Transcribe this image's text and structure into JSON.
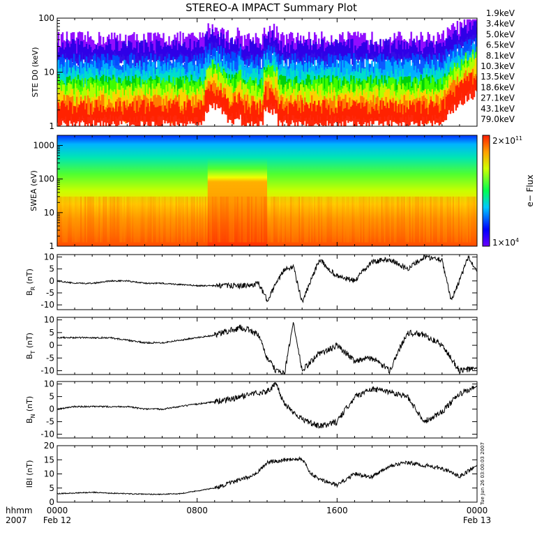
{
  "title": "STEREO-A IMPACT Summary Plot",
  "footer": {
    "hhmm_label": "hhmm",
    "year_label": "2007",
    "time_ticks": [
      "0000",
      "0800",
      "1600",
      "0000"
    ],
    "date_ticks": [
      "Feb 12",
      "",
      "",
      "Feb 13"
    ],
    "timestamp": "Tue Jun 26 03:00:03 2007"
  },
  "colors": {
    "line": "#000000",
    "ste_channels": [
      "#8c00ff",
      "#2a00e6",
      "#0050ff",
      "#00b4ff",
      "#00e0c8",
      "#00d000",
      "#40ff00",
      "#b4ff00",
      "#ffd200",
      "#ff7800",
      "#ff1e00"
    ]
  },
  "chart_data": [
    {
      "type": "line",
      "panel": "ste",
      "ylabel": "STE D0 (keV)",
      "yscale": "log",
      "ylim": [
        1,
        100
      ],
      "yticks": [
        "1",
        "10",
        "100"
      ],
      "xlim": [
        0,
        24
      ],
      "legend_position": "right",
      "series": [
        {
          "name": "1.9keV",
          "base": 30,
          "color": "#8c00ff"
        },
        {
          "name": "3.4keV",
          "base": 22,
          "color": "#2a00e6"
        },
        {
          "name": "5.0keV",
          "base": 12,
          "color": "#0050ff"
        },
        {
          "name": "6.5keV",
          "base": 9,
          "color": "#00b4ff"
        },
        {
          "name": "8.1keV",
          "base": 6.5,
          "color": "#00e0c8"
        },
        {
          "name": "10.3keV",
          "base": 4.8,
          "color": "#00d000"
        },
        {
          "name": "13.5keV",
          "base": 3.6,
          "color": "#40ff00"
        },
        {
          "name": "18.6keV",
          "base": 2.8,
          "color": "#b4ff00"
        },
        {
          "name": "27.1keV",
          "base": 2.2,
          "color": "#ffd200"
        },
        {
          "name": "43.1keV",
          "base": 1.7,
          "color": "#ff7800"
        },
        {
          "name": "79.0keV",
          "base": 1.35,
          "color": "#ff1e00"
        }
      ]
    },
    {
      "type": "heatmap",
      "panel": "swea",
      "ylabel": "SWEA (eV)",
      "yscale": "log",
      "ylim": [
        1,
        2000
      ],
      "yticks": [
        "1",
        "10",
        "100",
        "1000"
      ],
      "xlim": [
        0,
        24
      ],
      "colorbar": {
        "label": "e− Flux",
        "max_label": "2×10",
        "max_exp": "11",
        "min_label": "1×10",
        "min_exp": "4"
      }
    },
    {
      "type": "line",
      "panel": "br",
      "ylabel_main": "B",
      "ylabel_sub": "R",
      "ylabel_unit": "(nT)",
      "ylim": [
        -12,
        11
      ],
      "yticks": [
        10,
        5,
        0,
        -5,
        -10
      ],
      "xlim": [
        0,
        24
      ],
      "series": [
        {
          "x": [
            0,
            1,
            2,
            3,
            4,
            5,
            6,
            7,
            8,
            9,
            10,
            11,
            11.5,
            12,
            13,
            13.5,
            14,
            15,
            15.5,
            16,
            17,
            18,
            19,
            20,
            21,
            22,
            22.5,
            23,
            23.5,
            24
          ],
          "y": [
            0,
            -1,
            -1,
            0,
            0,
            -1,
            -1,
            -1.5,
            -2,
            -2,
            -2,
            -2,
            -1,
            -8,
            5,
            6,
            -9,
            9,
            5,
            2,
            0,
            8,
            9,
            5,
            10,
            9,
            -8,
            0,
            10,
            4
          ]
        }
      ]
    },
    {
      "type": "line",
      "panel": "bt",
      "ylabel_main": "B",
      "ylabel_sub": "T",
      "ylabel_unit": "(nT)",
      "ylim": [
        -11.5,
        11
      ],
      "yticks": [
        10,
        5,
        0,
        -5,
        -10
      ],
      "xlim": [
        0,
        24
      ],
      "series": [
        {
          "x": [
            0,
            1,
            2,
            3,
            4,
            5,
            6,
            7,
            8,
            9,
            10,
            10.5,
            11,
            11.5,
            12,
            12.5,
            13,
            13.5,
            14,
            15,
            15.5,
            16,
            17,
            18,
            19,
            20,
            21,
            22,
            23,
            24
          ],
          "y": [
            3,
            3,
            3,
            3,
            2,
            1,
            1,
            2,
            3,
            4,
            6,
            7,
            6,
            4,
            -5,
            -10,
            -11,
            9,
            -10,
            -3,
            -2,
            0,
            -6,
            -5,
            -10,
            5,
            4,
            0,
            -10,
            -9
          ]
        }
      ]
    },
    {
      "type": "line",
      "panel": "bn",
      "ylabel_main": "B",
      "ylabel_sub": "N",
      "ylabel_unit": "(nT)",
      "ylim": [
        -11.5,
        11
      ],
      "yticks": [
        10,
        5,
        0,
        -5,
        -10
      ],
      "xlim": [
        0,
        24
      ],
      "series": [
        {
          "x": [
            0,
            1,
            2,
            3,
            4,
            5,
            6,
            7,
            8,
            9,
            10,
            11,
            12,
            12.5,
            13,
            14,
            15,
            16,
            17,
            18,
            19,
            20,
            21,
            22,
            23,
            24
          ],
          "y": [
            0,
            1,
            1,
            1,
            1,
            0,
            0,
            1,
            2,
            3,
            4,
            6,
            7,
            10,
            2,
            -4,
            -7,
            -5,
            5,
            8,
            7,
            5,
            -5,
            -1,
            6,
            9
          ]
        }
      ]
    },
    {
      "type": "line",
      "panel": "bmag",
      "ylabel": "IBI (nT)",
      "ylim": [
        0,
        20
      ],
      "yticks": [
        20,
        15,
        10,
        5,
        0
      ],
      "xlim": [
        0,
        24
      ],
      "series": [
        {
          "x": [
            0,
            1,
            2,
            3,
            4,
            5,
            6,
            7,
            8,
            9,
            10,
            11,
            11.5,
            12,
            13,
            14,
            14.5,
            15,
            16,
            17,
            18,
            19,
            20,
            21,
            22,
            23,
            24
          ],
          "y": [
            3,
            3.2,
            3.5,
            3.2,
            3,
            2.8,
            2.8,
            3,
            4,
            5,
            7,
            9,
            11,
            14,
            15,
            15.5,
            10,
            8,
            6,
            10,
            9,
            13,
            14,
            13,
            12,
            9,
            13
          ]
        }
      ]
    }
  ]
}
